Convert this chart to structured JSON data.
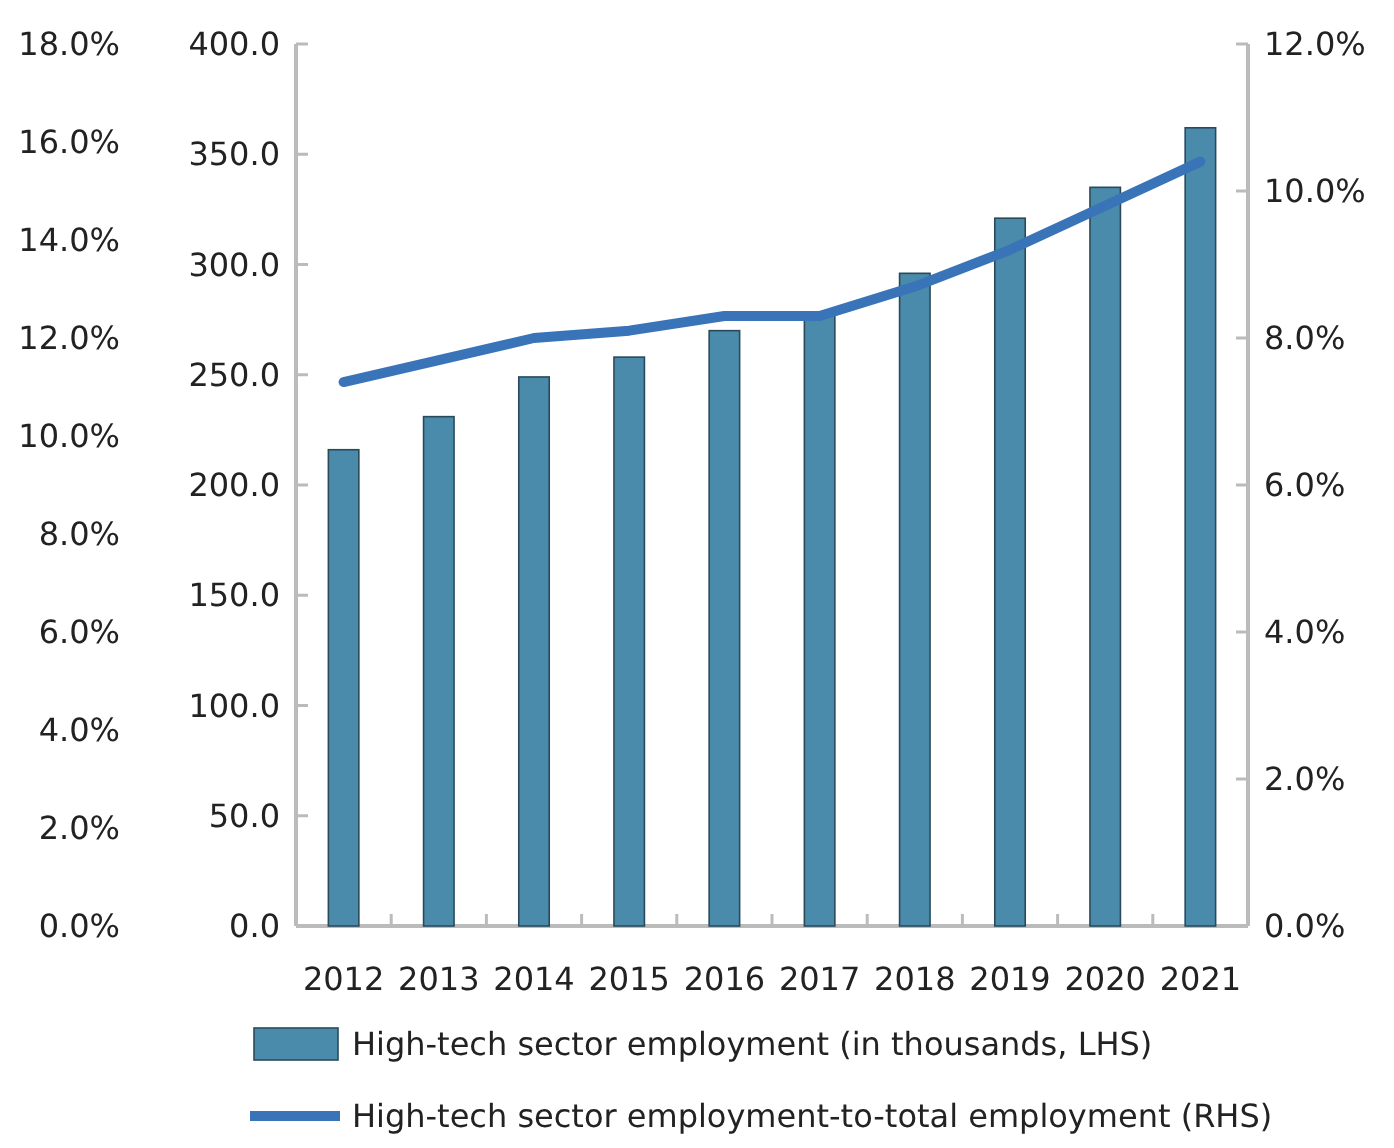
{
  "chart_data": {
    "type": "bar",
    "categories": [
      "2012",
      "2013",
      "2014",
      "2015",
      "2016",
      "2017",
      "2018",
      "2019",
      "2020",
      "2021"
    ],
    "series": [
      {
        "name": "High-tech sector employment (in thousands, LHS)",
        "color": "#4a8aab",
        "values": [
          216,
          231,
          249,
          258,
          270,
          278,
          296,
          321,
          335,
          362
        ]
      },
      {
        "name": "High-tech sector employment-to-total employment (RHS)",
        "type": "line",
        "axis": "y2",
        "color": "#3a74b8",
        "values": [
          7.4,
          7.7,
          8.0,
          8.1,
          8.3,
          8.3,
          8.7,
          9.2,
          9.8,
          10.4
        ]
      }
    ],
    "ylim": [
      0,
      400
    ],
    "yticks": [
      {
        "value": 0,
        "label": "0.0"
      },
      {
        "value": 50,
        "label": "50.0"
      },
      {
        "value": 100,
        "label": "100.0"
      },
      {
        "value": 150,
        "label": "150.0"
      },
      {
        "value": 200,
        "label": "200.0"
      },
      {
        "value": 250,
        "label": "250.0"
      },
      {
        "value": 300,
        "label": "300.0"
      },
      {
        "value": 350,
        "label": "350.0"
      },
      {
        "value": 400,
        "label": "400.0"
      }
    ],
    "y2lim": [
      0,
      12
    ],
    "y2ticks": [
      {
        "value": 0,
        "label": "0.0%"
      },
      {
        "value": 2,
        "label": "2.0%"
      },
      {
        "value": 4,
        "label": "4.0%"
      },
      {
        "value": 6,
        "label": "6.0%"
      },
      {
        "value": 8,
        "label": "8.0%"
      },
      {
        "value": 10,
        "label": "10.0%"
      },
      {
        "value": 12,
        "label": "12.0%"
      }
    ],
    "y3lim": [
      0,
      18
    ],
    "y3ticks": [
      {
        "value": 0,
        "label": "0.0%"
      },
      {
        "value": 2,
        "label": "2.0%"
      },
      {
        "value": 4,
        "label": "4.0%"
      },
      {
        "value": 6,
        "label": "6.0%"
      },
      {
        "value": 8,
        "label": "8.0%"
      },
      {
        "value": 10,
        "label": "10.0%"
      },
      {
        "value": 12,
        "label": "12.0%"
      },
      {
        "value": 14,
        "label": "14.0%"
      },
      {
        "value": 16,
        "label": "16.0%"
      },
      {
        "value": 18,
        "label": "18.0%"
      }
    ],
    "legend": "bottom",
    "grid": false,
    "marker": "none",
    "line_style": "solid"
  }
}
